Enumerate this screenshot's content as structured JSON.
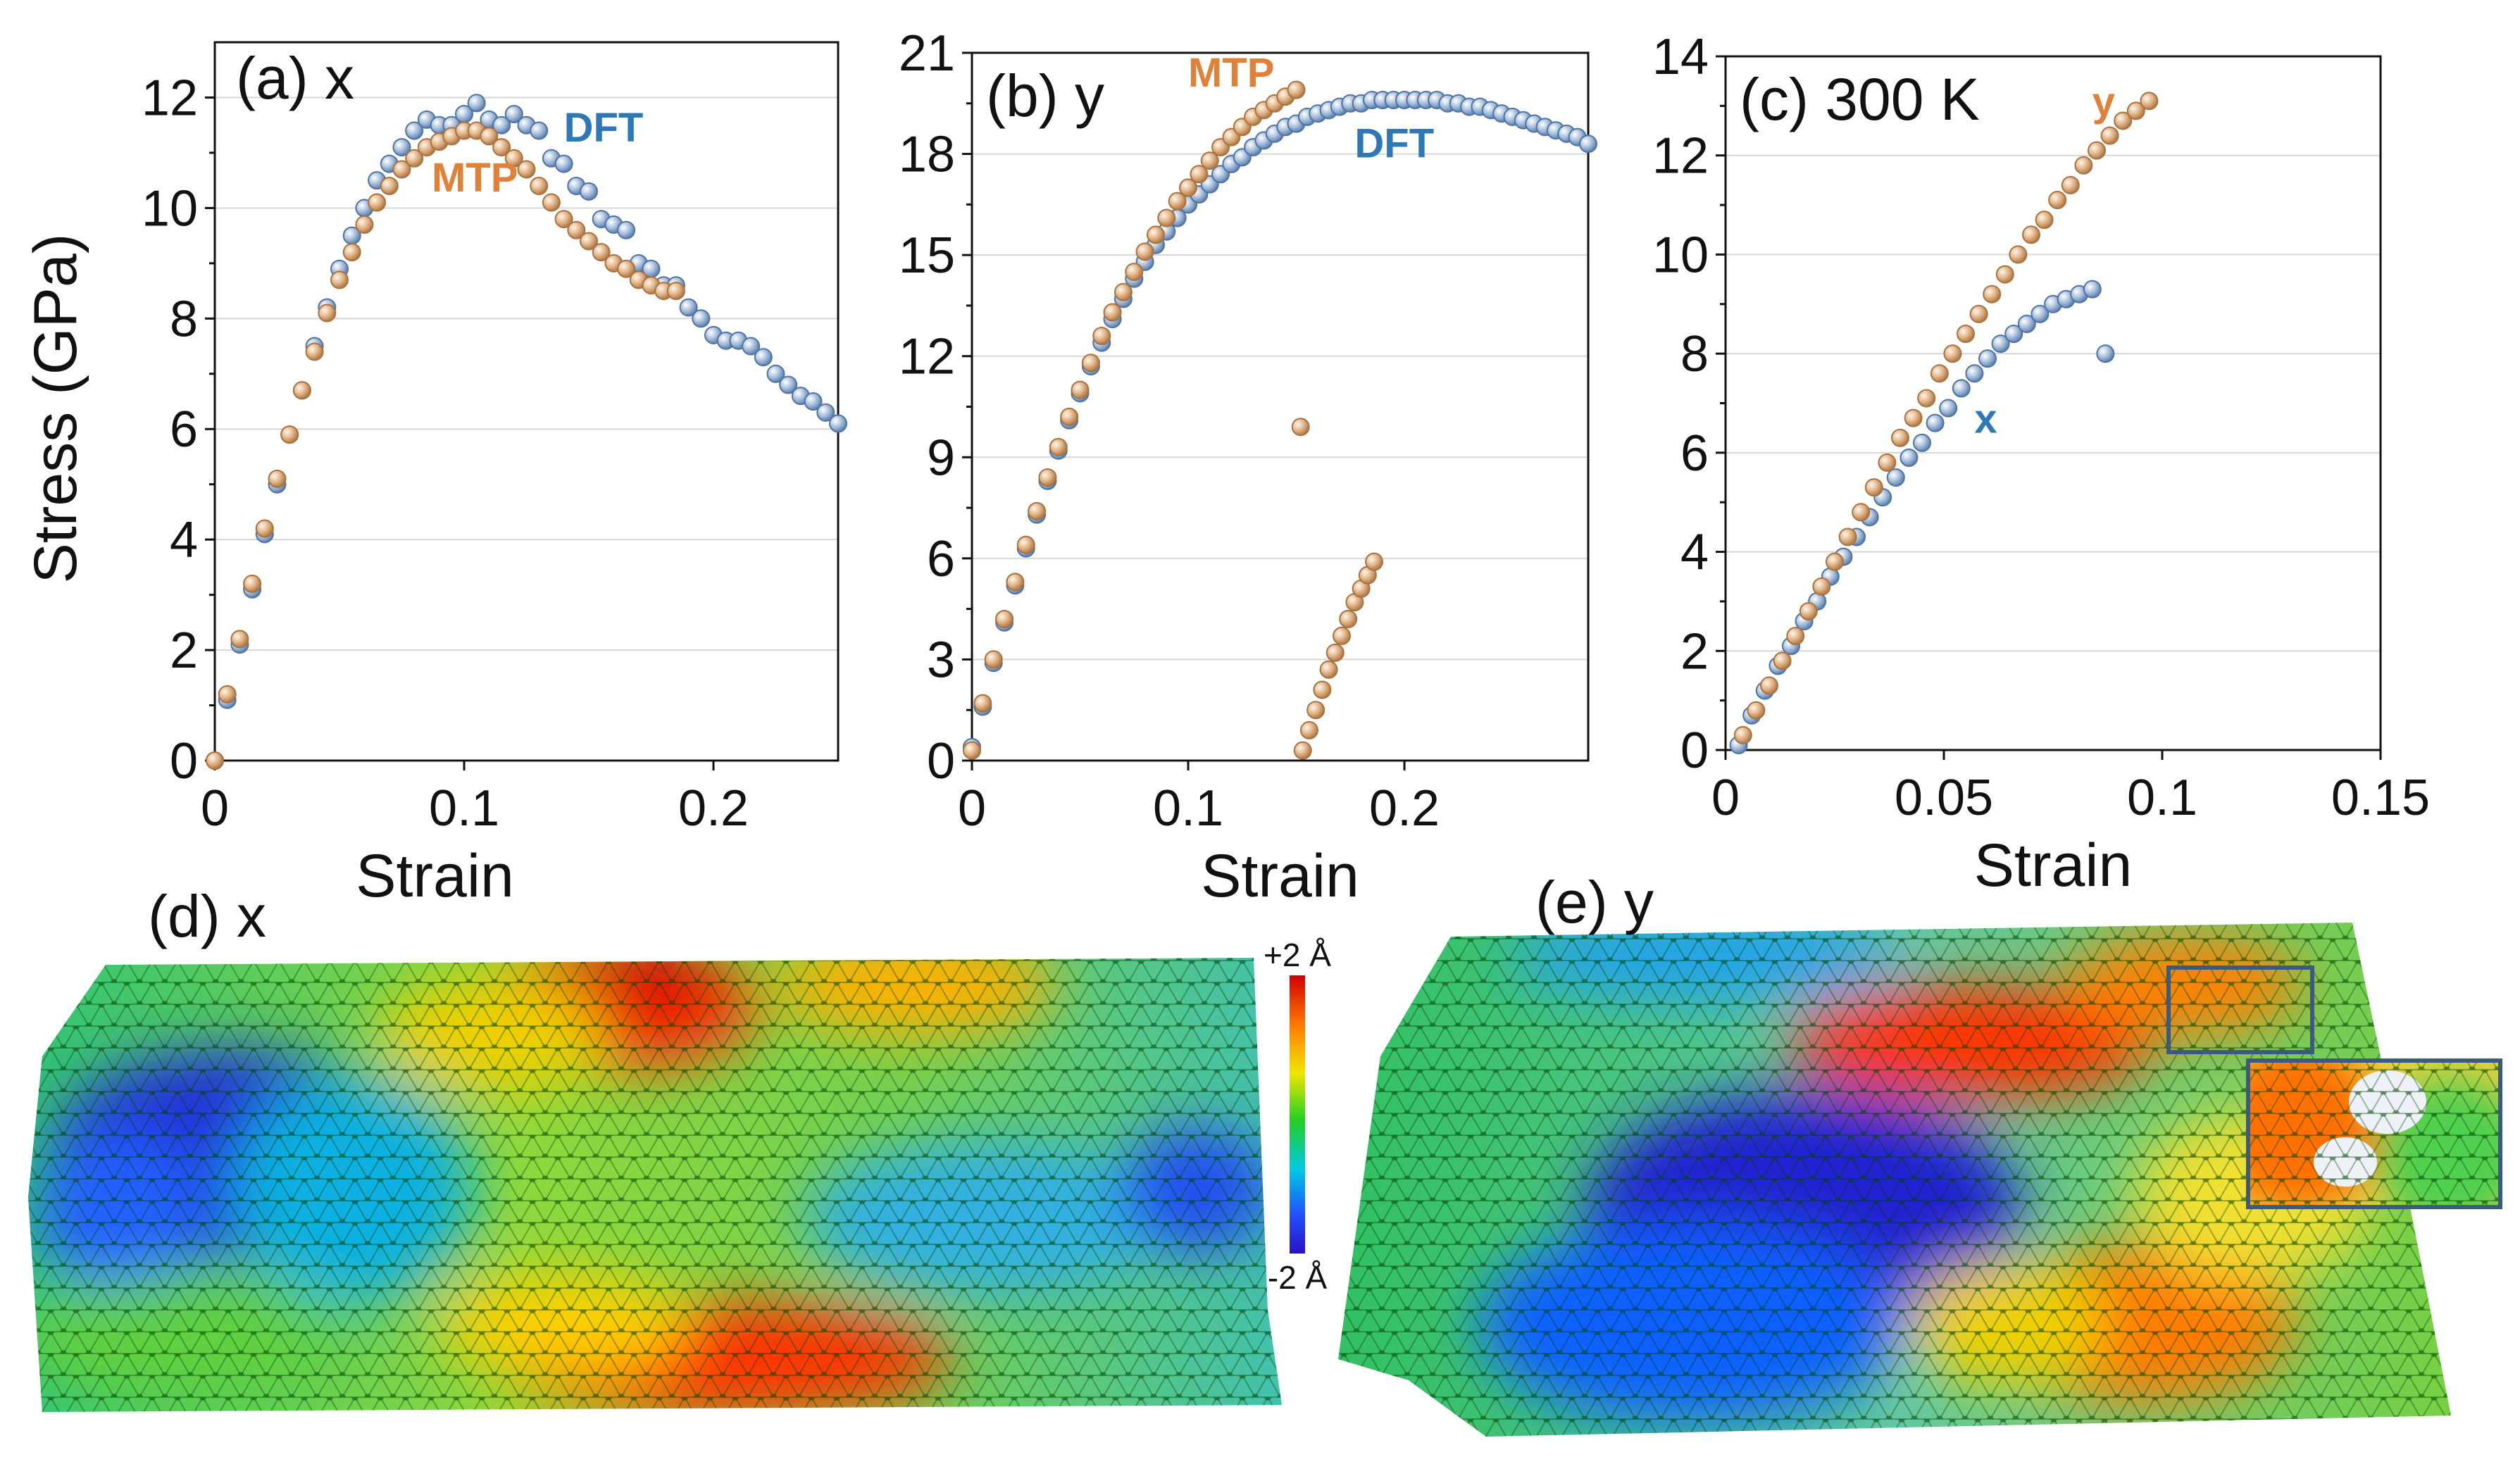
{
  "colors": {
    "dft": "#7f9fc8",
    "dft_dark": "#3f6ea8",
    "mtp": "#d7a67c",
    "mtp_dark": "#b97a44",
    "dft_label": "#2f78b8",
    "mtp_label": "#e0813a"
  },
  "chart_data": [
    {
      "type": "scatter",
      "panel_label": "(a) x",
      "xlabel": "Strain",
      "ylabel": "Stress (GPa)",
      "xlim": [
        0,
        0.25
      ],
      "ylim": [
        0,
        13
      ],
      "xticks": [
        0,
        0.1,
        0.2
      ],
      "yticks": [
        0,
        2,
        4,
        6,
        8,
        10,
        12
      ],
      "grid": true,
      "series": [
        {
          "name": "DFT",
          "color_key": "dft",
          "x": [
            0,
            0.005,
            0.01,
            0.015,
            0.02,
            0.025,
            0.03,
            0.035,
            0.04,
            0.045,
            0.05,
            0.055,
            0.06,
            0.065,
            0.07,
            0.075,
            0.08,
            0.085,
            0.09,
            0.095,
            0.1,
            0.105,
            0.11,
            0.115,
            0.12,
            0.125,
            0.13,
            0.135,
            0.14,
            0.145,
            0.15,
            0.155,
            0.16,
            0.165,
            0.17,
            0.175,
            0.18,
            0.185,
            0.19,
            0.195,
            0.2,
            0.205,
            0.21,
            0.215,
            0.22,
            0.225,
            0.23,
            0.235,
            0.24,
            0.245,
            0.25
          ],
          "y": [
            0,
            1.1,
            2.1,
            3.1,
            4.1,
            5.0,
            5.9,
            6.7,
            7.5,
            8.2,
            8.9,
            9.5,
            10.0,
            10.5,
            10.8,
            11.1,
            11.4,
            11.6,
            11.5,
            11.5,
            11.7,
            11.9,
            11.6,
            11.5,
            11.7,
            11.5,
            11.4,
            10.9,
            10.8,
            10.4,
            10.3,
            9.8,
            9.7,
            9.6,
            9.0,
            8.9,
            8.6,
            8.6,
            8.2,
            8.0,
            7.7,
            7.6,
            7.6,
            7.5,
            7.3,
            7.0,
            6.8,
            6.6,
            6.5,
            6.3,
            6.1
          ]
        },
        {
          "name": "MTP",
          "color_key": "mtp",
          "x": [
            0,
            0.005,
            0.01,
            0.015,
            0.02,
            0.025,
            0.03,
            0.035,
            0.04,
            0.045,
            0.05,
            0.055,
            0.06,
            0.065,
            0.07,
            0.075,
            0.08,
            0.085,
            0.09,
            0.095,
            0.1,
            0.105,
            0.11,
            0.115,
            0.12,
            0.125,
            0.13,
            0.135,
            0.14,
            0.145,
            0.15,
            0.155,
            0.16,
            0.165,
            0.17,
            0.175,
            0.18,
            0.185
          ],
          "y": [
            0,
            1.2,
            2.2,
            3.2,
            4.2,
            5.1,
            5.9,
            6.7,
            7.4,
            8.1,
            8.7,
            9.2,
            9.7,
            10.1,
            10.4,
            10.7,
            10.9,
            11.1,
            11.2,
            11.3,
            11.4,
            11.4,
            11.3,
            11.1,
            10.9,
            10.7,
            10.4,
            10.1,
            9.8,
            9.6,
            9.4,
            9.2,
            9.0,
            8.9,
            8.7,
            8.6,
            8.5,
            8.5
          ]
        }
      ],
      "annotations": [
        {
          "text": "DFT",
          "x": 0.14,
          "y": 11.2,
          "color_key": "dft_label"
        },
        {
          "text": "MTP",
          "x": 0.087,
          "y": 10.3,
          "color_key": "mtp_label"
        }
      ]
    },
    {
      "type": "scatter",
      "panel_label": "(b) y",
      "xlabel": "Strain",
      "ylabel": "",
      "xlim": [
        0,
        0.285
      ],
      "ylim": [
        0,
        21
      ],
      "xticks": [
        0,
        0.1,
        0.2
      ],
      "yticks": [
        0,
        3,
        6,
        9,
        12,
        15,
        18,
        21
      ],
      "grid": true,
      "series": [
        {
          "name": "DFT",
          "color_key": "dft",
          "x": [
            0,
            0.005,
            0.01,
            0.015,
            0.02,
            0.025,
            0.03,
            0.035,
            0.04,
            0.045,
            0.05,
            0.055,
            0.06,
            0.065,
            0.07,
            0.075,
            0.08,
            0.085,
            0.09,
            0.095,
            0.1,
            0.105,
            0.11,
            0.115,
            0.12,
            0.125,
            0.13,
            0.135,
            0.14,
            0.145,
            0.15,
            0.155,
            0.16,
            0.165,
            0.17,
            0.175,
            0.18,
            0.185,
            0.19,
            0.195,
            0.2,
            0.205,
            0.21,
            0.215,
            0.22,
            0.225,
            0.23,
            0.235,
            0.24,
            0.245,
            0.25,
            0.255,
            0.26,
            0.265,
            0.27,
            0.275,
            0.28,
            0.285
          ],
          "y": [
            0.4,
            1.6,
            2.9,
            4.1,
            5.2,
            6.3,
            7.3,
            8.3,
            9.2,
            10.1,
            10.9,
            11.7,
            12.4,
            13.1,
            13.7,
            14.3,
            14.8,
            15.3,
            15.7,
            16.1,
            16.5,
            16.8,
            17.1,
            17.4,
            17.7,
            17.9,
            18.2,
            18.4,
            18.6,
            18.8,
            18.9,
            19.1,
            19.2,
            19.3,
            19.4,
            19.5,
            19.5,
            19.6,
            19.6,
            19.6,
            19.6,
            19.6,
            19.6,
            19.6,
            19.5,
            19.5,
            19.4,
            19.4,
            19.3,
            19.2,
            19.1,
            19.0,
            18.9,
            18.8,
            18.7,
            18.6,
            18.5,
            18.3
          ]
        },
        {
          "name": "MTP",
          "color_key": "mtp",
          "x": [
            0,
            0.005,
            0.01,
            0.015,
            0.02,
            0.025,
            0.03,
            0.035,
            0.04,
            0.045,
            0.05,
            0.055,
            0.06,
            0.065,
            0.07,
            0.075,
            0.08,
            0.085,
            0.09,
            0.095,
            0.1,
            0.105,
            0.11,
            0.115,
            0.12,
            0.125,
            0.13,
            0.135,
            0.14,
            0.145,
            0.15,
            0.152,
            0.153,
            0.156,
            0.159,
            0.162,
            0.165,
            0.168,
            0.171,
            0.174,
            0.177,
            0.18,
            0.183,
            0.186
          ],
          "y": [
            0.3,
            1.7,
            3.0,
            4.2,
            5.3,
            6.4,
            7.4,
            8.4,
            9.3,
            10.2,
            11.0,
            11.8,
            12.6,
            13.3,
            13.9,
            14.5,
            15.1,
            15.6,
            16.1,
            16.6,
            17.0,
            17.4,
            17.8,
            18.2,
            18.5,
            18.8,
            19.1,
            19.3,
            19.5,
            19.7,
            19.9,
            9.9,
            0.3,
            0.9,
            1.5,
            2.1,
            2.7,
            3.2,
            3.7,
            4.2,
            4.7,
            5.1,
            5.5,
            5.9
          ]
        }
      ],
      "annotations": [
        {
          "text": "MTP",
          "x": 0.1,
          "y": 20.0,
          "color_key": "mtp_label"
        },
        {
          "text": "DFT",
          "x": 0.177,
          "y": 17.9,
          "color_key": "dft_label"
        }
      ]
    },
    {
      "type": "scatter",
      "panel_label": "(c) 300 K",
      "xlabel": "Strain",
      "ylabel": "",
      "xlim": [
        0,
        0.15
      ],
      "ylim": [
        0,
        14
      ],
      "xticks": [
        0,
        0.05,
        0.1,
        0.15
      ],
      "yticks": [
        0,
        2,
        4,
        6,
        8,
        10,
        12,
        14
      ],
      "grid": true,
      "series": [
        {
          "name": "x",
          "color_key": "dft",
          "x": [
            0.003,
            0.006,
            0.009,
            0.012,
            0.015,
            0.018,
            0.021,
            0.024,
            0.027,
            0.03,
            0.033,
            0.036,
            0.039,
            0.042,
            0.045,
            0.048,
            0.051,
            0.054,
            0.057,
            0.06,
            0.063,
            0.066,
            0.069,
            0.072,
            0.075,
            0.078,
            0.081,
            0.084,
            0.087
          ],
          "y": [
            0.1,
            0.7,
            1.2,
            1.7,
            2.1,
            2.6,
            3.0,
            3.5,
            3.9,
            4.3,
            4.7,
            5.1,
            5.5,
            5.9,
            6.2,
            6.6,
            6.9,
            7.3,
            7.6,
            7.9,
            8.2,
            8.4,
            8.6,
            8.8,
            9.0,
            9.1,
            9.2,
            9.3,
            8.0
          ]
        },
        {
          "name": "y",
          "color_key": "mtp",
          "x": [
            0.004,
            0.007,
            0.01,
            0.013,
            0.016,
            0.019,
            0.022,
            0.025,
            0.028,
            0.031,
            0.034,
            0.037,
            0.04,
            0.043,
            0.046,
            0.049,
            0.052,
            0.055,
            0.058,
            0.061,
            0.064,
            0.067,
            0.07,
            0.073,
            0.076,
            0.079,
            0.082,
            0.085,
            0.088,
            0.091,
            0.094,
            0.097
          ],
          "y": [
            0.3,
            0.8,
            1.3,
            1.8,
            2.3,
            2.8,
            3.3,
            3.8,
            4.3,
            4.8,
            5.3,
            5.8,
            6.3,
            6.7,
            7.1,
            7.6,
            8.0,
            8.4,
            8.8,
            9.2,
            9.6,
            10.0,
            10.4,
            10.7,
            11.1,
            11.4,
            11.8,
            12.1,
            12.4,
            12.7,
            12.9,
            13.1
          ]
        }
      ],
      "annotations": [
        {
          "text": "y",
          "x": 0.084,
          "y": 12.8,
          "color_key": "mtp_label"
        },
        {
          "text": "x",
          "x": 0.057,
          "y": 6.4,
          "color_key": "dft_label"
        }
      ]
    }
  ],
  "maps": {
    "d_label": "(d) x",
    "e_label": "(e) y",
    "colorbar_top": "+2 Å",
    "colorbar_bottom": "-2 Å"
  }
}
